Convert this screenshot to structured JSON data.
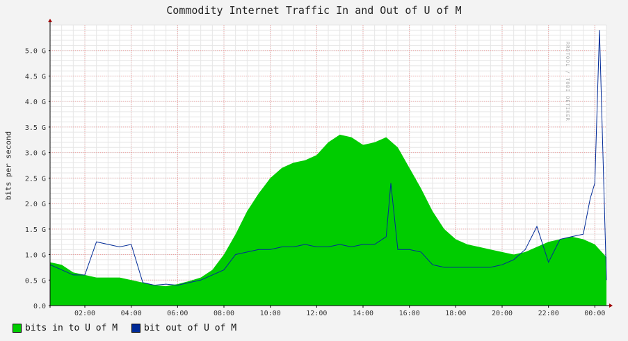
{
  "chart_data": {
    "type": "area",
    "title": "Commodity Internet Traffic In and Out of U of M",
    "ylabel": "bits per second",
    "watermark": "RRDTOOL / TOBI OETIKER",
    "x_ticks": [
      "02:00",
      "04:00",
      "06:00",
      "08:00",
      "10:00",
      "12:00",
      "14:00",
      "16:00",
      "18:00",
      "20:00",
      "22:00",
      "00:00"
    ],
    "y_ticks": [
      "0.0",
      "0.5 G",
      "1.0 G",
      "1.5 G",
      "2.0 G",
      "2.5 G",
      "3.0 G",
      "3.5 G",
      "4.0 G",
      "4.5 G",
      "5.0 G"
    ],
    "ylim": [
      0,
      5.5
    ],
    "xlim_hours": [
      0.5,
      24.5
    ],
    "grid": true,
    "legend_position": "bottom-left",
    "series": [
      {
        "name": "bits in to U of M",
        "color": "#00cc00",
        "style": "area",
        "x": [
          0.5,
          1.0,
          1.5,
          2.0,
          2.5,
          3.0,
          3.5,
          4.0,
          4.5,
          5.0,
          5.5,
          6.0,
          6.5,
          7.0,
          7.5,
          8.0,
          8.5,
          9.0,
          9.5,
          10.0,
          10.5,
          11.0,
          11.5,
          12.0,
          12.5,
          13.0,
          13.5,
          14.0,
          14.5,
          15.0,
          15.5,
          16.0,
          16.5,
          17.0,
          17.5,
          18.0,
          18.5,
          19.0,
          19.5,
          20.0,
          20.5,
          21.0,
          21.5,
          22.0,
          22.5,
          23.0,
          23.5,
          24.0,
          24.5
        ],
        "y": [
          0.85,
          0.8,
          0.65,
          0.6,
          0.55,
          0.55,
          0.55,
          0.5,
          0.45,
          0.4,
          0.38,
          0.42,
          0.48,
          0.55,
          0.7,
          1.0,
          1.4,
          1.85,
          2.2,
          2.5,
          2.7,
          2.8,
          2.85,
          2.95,
          3.2,
          3.35,
          3.3,
          3.15,
          3.2,
          3.3,
          3.1,
          2.7,
          2.3,
          1.85,
          1.5,
          1.3,
          1.2,
          1.15,
          1.1,
          1.05,
          1.0,
          1.05,
          1.15,
          1.25,
          1.3,
          1.35,
          1.3,
          1.2,
          0.95
        ]
      },
      {
        "name": "bit out of U of M",
        "color": "#002a97",
        "style": "line",
        "x": [
          0.5,
          1.0,
          1.5,
          2.0,
          2.5,
          3.0,
          3.5,
          4.0,
          4.5,
          5.0,
          5.5,
          6.0,
          6.5,
          7.0,
          7.5,
          8.0,
          8.5,
          9.0,
          9.5,
          10.0,
          10.5,
          11.0,
          11.5,
          12.0,
          12.5,
          13.0,
          13.5,
          14.0,
          14.5,
          15.0,
          15.2,
          15.5,
          16.0,
          16.5,
          17.0,
          17.5,
          18.0,
          18.5,
          19.0,
          19.5,
          20.0,
          20.5,
          21.0,
          21.5,
          22.0,
          22.5,
          23.0,
          23.5,
          23.8,
          24.0,
          24.2,
          24.5
        ],
        "y": [
          0.8,
          0.7,
          0.6,
          0.6,
          1.25,
          1.2,
          1.15,
          1.2,
          0.45,
          0.4,
          0.42,
          0.4,
          0.45,
          0.5,
          0.6,
          0.7,
          1.0,
          1.05,
          1.1,
          1.1,
          1.15,
          1.15,
          1.2,
          1.15,
          1.15,
          1.2,
          1.15,
          1.2,
          1.2,
          1.35,
          2.4,
          1.1,
          1.1,
          1.05,
          0.8,
          0.75,
          0.75,
          0.75,
          0.75,
          0.75,
          0.8,
          0.9,
          1.1,
          1.55,
          0.85,
          1.3,
          1.35,
          1.4,
          2.1,
          2.4,
          5.4,
          0.5
        ]
      }
    ]
  }
}
